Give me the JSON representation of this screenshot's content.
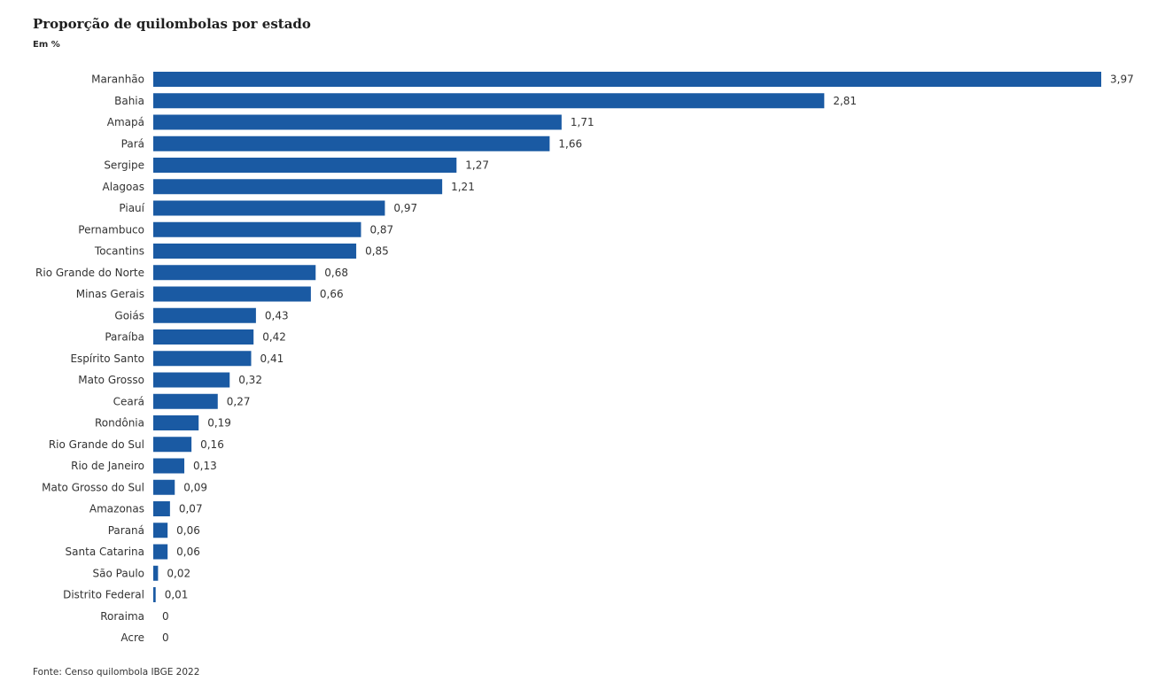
{
  "title": "Proporção de quilombolas por estado",
  "subtitle": "Em %",
  "source": "Fonte: Censo quilombola IBGE 2022",
  "colors": {
    "bar": "#1a5aa3"
  },
  "chart_data": {
    "type": "bar",
    "orientation": "horizontal",
    "title": "Proporção de quilombolas por estado",
    "subtitle": "Em %",
    "xlim": [
      0,
      3.97
    ],
    "grid": false,
    "categories": [
      "Maranhão",
      "Bahia",
      "Amapá",
      "Pará",
      "Sergipe",
      "Alagoas",
      "Piauí",
      "Pernambuco",
      "Tocantins",
      "Rio Grande do Norte",
      "Minas Gerais",
      "Goiás",
      "Paraíba",
      "Espírito Santo",
      "Mato Grosso",
      "Ceará",
      "Rondônia",
      "Rio Grande do Sul",
      "Rio de Janeiro",
      "Mato Grosso do Sul",
      "Amazonas",
      "Paraná",
      "Santa Catarina",
      "São Paulo",
      "Distrito Federal",
      "Roraima",
      "Acre"
    ],
    "values": [
      3.97,
      2.81,
      1.71,
      1.66,
      1.27,
      1.21,
      0.97,
      0.87,
      0.85,
      0.68,
      0.66,
      0.43,
      0.42,
      0.41,
      0.32,
      0.27,
      0.19,
      0.16,
      0.13,
      0.09,
      0.07,
      0.06,
      0.06,
      0.02,
      0.01,
      0,
      0
    ],
    "value_labels": [
      "3,97",
      "2,81",
      "1,71",
      "1,66",
      "1,27",
      "1,21",
      "0,97",
      "0,87",
      "0,85",
      "0,68",
      "0,66",
      "0,43",
      "0,42",
      "0,41",
      "0,32",
      "0,27",
      "0,19",
      "0,16",
      "0,13",
      "0,09",
      "0,07",
      "0,06",
      "0,06",
      "0,02",
      "0,01",
      "0",
      "0"
    ]
  }
}
